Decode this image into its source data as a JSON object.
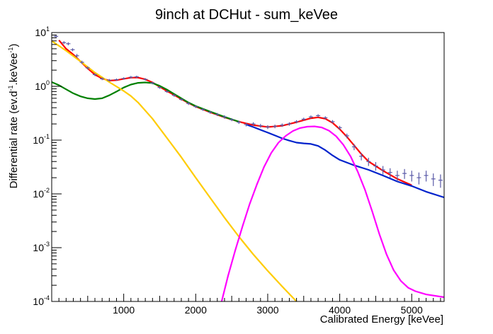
{
  "chart_data": {
    "type": "line",
    "title": "9inch at DCHut - sum_keVee",
    "xlabel": "Calibrated Energy [keVee]",
    "ylabel": "Differential rate (ev.d^-1.keVee^-1)",
    "xlim": [
      0,
      5450
    ],
    "ylim": [
      0.0001,
      10
    ],
    "log_y": true,
    "grid": false,
    "x_ticks": [
      {
        "value": 1000,
        "label": "1000"
      },
      {
        "value": 2000,
        "label": "2000"
      },
      {
        "value": 3000,
        "label": "3000"
      },
      {
        "value": 4000,
        "label": "4000"
      },
      {
        "value": 5000,
        "label": "5000"
      }
    ],
    "y_ticks": [
      {
        "value": 10,
        "base": "10",
        "exp": "1"
      },
      {
        "value": 1,
        "base": "10",
        "exp": "0"
      },
      {
        "value": 0.1,
        "base": "10",
        "exp": "-1"
      },
      {
        "value": 0.01,
        "base": "10",
        "exp": "-2"
      },
      {
        "value": 0.001,
        "base": "10",
        "exp": "-3"
      },
      {
        "value": 0.0001,
        "base": "10",
        "exp": "-4"
      }
    ],
    "series": [
      {
        "kind": "data-points",
        "color": "#5a5aa8",
        "points": [
          {
            "x": 60,
            "y": 8.5,
            "err": 0.5
          },
          {
            "x": 170,
            "y": 6.5,
            "err": 0.4
          },
          {
            "x": 230,
            "y": 6.2,
            "err": 0.4
          },
          {
            "x": 290,
            "y": 4.8,
            "err": 0.3
          },
          {
            "x": 350,
            "y": 3.7,
            "err": 0.3
          },
          {
            "x": 420,
            "y": 2.8,
            "err": 0.2
          },
          {
            "x": 500,
            "y": 2.2,
            "err": 0.15
          },
          {
            "x": 600,
            "y": 1.65,
            "err": 0.1
          },
          {
            "x": 700,
            "y": 1.38,
            "err": 0.08
          },
          {
            "x": 800,
            "y": 1.3,
            "err": 0.07
          },
          {
            "x": 900,
            "y": 1.33,
            "err": 0.07
          },
          {
            "x": 1000,
            "y": 1.4,
            "err": 0.07
          },
          {
            "x": 1100,
            "y": 1.48,
            "err": 0.08
          },
          {
            "x": 1180,
            "y": 1.5,
            "err": 0.08
          },
          {
            "x": 1300,
            "y": 1.35,
            "err": 0.07
          },
          {
            "x": 1400,
            "y": 1.15,
            "err": 0.06
          },
          {
            "x": 1500,
            "y": 0.95,
            "err": 0.05
          },
          {
            "x": 1600,
            "y": 0.8,
            "err": 0.04
          },
          {
            "x": 1700,
            "y": 0.68,
            "err": 0.04
          },
          {
            "x": 1800,
            "y": 0.57,
            "err": 0.03
          },
          {
            "x": 1900,
            "y": 0.48,
            "err": 0.03
          },
          {
            "x": 2000,
            "y": 0.42,
            "err": 0.025
          },
          {
            "x": 2100,
            "y": 0.37,
            "err": 0.02
          },
          {
            "x": 2200,
            "y": 0.33,
            "err": 0.02
          },
          {
            "x": 2300,
            "y": 0.3,
            "err": 0.02
          },
          {
            "x": 2400,
            "y": 0.27,
            "err": 0.02
          },
          {
            "x": 2500,
            "y": 0.24,
            "err": 0.015
          },
          {
            "x": 2600,
            "y": 0.215,
            "err": 0.015
          },
          {
            "x": 2700,
            "y": 0.195,
            "err": 0.015
          },
          {
            "x": 2800,
            "y": 0.2,
            "err": 0.015
          },
          {
            "x": 2900,
            "y": 0.185,
            "err": 0.015
          },
          {
            "x": 3000,
            "y": 0.175,
            "err": 0.014
          },
          {
            "x": 3100,
            "y": 0.18,
            "err": 0.014
          },
          {
            "x": 3200,
            "y": 0.19,
            "err": 0.014
          },
          {
            "x": 3300,
            "y": 0.2,
            "err": 0.015
          },
          {
            "x": 3400,
            "y": 0.22,
            "err": 0.015
          },
          {
            "x": 3500,
            "y": 0.245,
            "err": 0.016
          },
          {
            "x": 3600,
            "y": 0.27,
            "err": 0.017
          },
          {
            "x": 3700,
            "y": 0.285,
            "err": 0.018
          },
          {
            "x": 3800,
            "y": 0.26,
            "err": 0.017
          },
          {
            "x": 3900,
            "y": 0.22,
            "err": 0.016
          },
          {
            "x": 4000,
            "y": 0.17,
            "err": 0.014
          },
          {
            "x": 4100,
            "y": 0.12,
            "err": 0.012
          },
          {
            "x": 4200,
            "y": 0.075,
            "err": 0.01
          },
          {
            "x": 4300,
            "y": 0.05,
            "err": 0.008
          },
          {
            "x": 4400,
            "y": 0.04,
            "err": 0.007
          },
          {
            "x": 4500,
            "y": 0.033,
            "err": 0.006
          },
          {
            "x": 4600,
            "y": 0.028,
            "err": 0.005
          },
          {
            "x": 4700,
            "y": 0.025,
            "err": 0.005
          },
          {
            "x": 4800,
            "y": 0.022,
            "err": 0.005
          },
          {
            "x": 4900,
            "y": 0.024,
            "err": 0.005
          },
          {
            "x": 5000,
            "y": 0.022,
            "err": 0.005
          },
          {
            "x": 5100,
            "y": 0.02,
            "err": 0.005
          },
          {
            "x": 5200,
            "y": 0.022,
            "err": 0.005
          },
          {
            "x": 5300,
            "y": 0.019,
            "err": 0.005
          },
          {
            "x": 5400,
            "y": 0.018,
            "err": 0.005
          }
        ]
      },
      {
        "kind": "curve",
        "color": "#ff0000",
        "points": [
          [
            100,
            7.2
          ],
          [
            200,
            5.0
          ],
          [
            300,
            3.9
          ],
          [
            400,
            2.9
          ],
          [
            500,
            2.15
          ],
          [
            600,
            1.65
          ],
          [
            700,
            1.4
          ],
          [
            800,
            1.28
          ],
          [
            900,
            1.3
          ],
          [
            1000,
            1.38
          ],
          [
            1100,
            1.45
          ],
          [
            1200,
            1.45
          ],
          [
            1300,
            1.35
          ],
          [
            1400,
            1.18
          ],
          [
            1500,
            0.98
          ],
          [
            1600,
            0.82
          ],
          [
            1700,
            0.69
          ],
          [
            1800,
            0.58
          ],
          [
            1900,
            0.49
          ],
          [
            2000,
            0.42
          ],
          [
            2200,
            0.33
          ],
          [
            2400,
            0.265
          ],
          [
            2600,
            0.22
          ],
          [
            2800,
            0.19
          ],
          [
            3000,
            0.175
          ],
          [
            3200,
            0.185
          ],
          [
            3400,
            0.215
          ],
          [
            3600,
            0.255
          ],
          [
            3700,
            0.265
          ],
          [
            3800,
            0.25
          ],
          [
            3900,
            0.21
          ],
          [
            4000,
            0.16
          ],
          [
            4100,
            0.115
          ],
          [
            4200,
            0.08
          ],
          [
            4300,
            0.055
          ],
          [
            4400,
            0.04
          ],
          [
            4600,
            0.027
          ],
          [
            4800,
            0.019
          ],
          [
            5000,
            0.0145
          ]
        ]
      },
      {
        "kind": "curve",
        "color": "#0022cc",
        "points": [
          [
            2700,
            0.195
          ],
          [
            2800,
            0.175
          ],
          [
            2900,
            0.155
          ],
          [
            3000,
            0.138
          ],
          [
            3100,
            0.122
          ],
          [
            3200,
            0.108
          ],
          [
            3300,
            0.098
          ],
          [
            3400,
            0.09
          ],
          [
            3500,
            0.087
          ],
          [
            3600,
            0.085
          ],
          [
            3700,
            0.078
          ],
          [
            3800,
            0.065
          ],
          [
            3900,
            0.052
          ],
          [
            4000,
            0.043
          ],
          [
            4200,
            0.034
          ],
          [
            4400,
            0.028
          ],
          [
            4600,
            0.022
          ],
          [
            4800,
            0.017
          ],
          [
            5000,
            0.014
          ],
          [
            5200,
            0.011
          ],
          [
            5450,
            0.0086
          ]
        ]
      },
      {
        "kind": "curve",
        "color": "#008000",
        "points": [
          [
            0,
            1.2
          ],
          [
            100,
            1.05
          ],
          [
            200,
            0.88
          ],
          [
            300,
            0.74
          ],
          [
            400,
            0.65
          ],
          [
            500,
            0.6
          ],
          [
            600,
            0.58
          ],
          [
            700,
            0.6
          ],
          [
            800,
            0.68
          ],
          [
            900,
            0.8
          ],
          [
            1000,
            0.95
          ],
          [
            1100,
            1.08
          ],
          [
            1200,
            1.16
          ],
          [
            1300,
            1.18
          ],
          [
            1400,
            1.15
          ],
          [
            1500,
            1.02
          ],
          [
            1600,
            0.87
          ],
          [
            1700,
            0.72
          ],
          [
            1800,
            0.6
          ],
          [
            1900,
            0.5
          ],
          [
            2000,
            0.43
          ],
          [
            2200,
            0.34
          ],
          [
            2400,
            0.27
          ],
          [
            2600,
            0.22
          ]
        ]
      },
      {
        "kind": "curve",
        "color": "#ffcc00",
        "points": [
          [
            0,
            7.0
          ],
          [
            200,
            4.6
          ],
          [
            400,
            2.9
          ],
          [
            600,
            1.8
          ],
          [
            800,
            1.2
          ],
          [
            1000,
            0.82
          ],
          [
            1100,
            0.66
          ],
          [
            1200,
            0.5
          ],
          [
            1400,
            0.25
          ],
          [
            1600,
            0.11
          ],
          [
            1800,
            0.048
          ],
          [
            2000,
            0.02
          ],
          [
            2200,
            0.0085
          ],
          [
            2400,
            0.0036
          ],
          [
            2600,
            0.0016
          ],
          [
            2800,
            0.00075
          ],
          [
            3000,
            0.00037
          ],
          [
            3200,
            0.00019
          ],
          [
            3400,
            0.0001
          ]
        ]
      },
      {
        "kind": "curve",
        "color": "#ff00ff",
        "points": [
          [
            2360,
            0.0001
          ],
          [
            2450,
            0.0003
          ],
          [
            2550,
            0.0009
          ],
          [
            2650,
            0.0025
          ],
          [
            2750,
            0.0065
          ],
          [
            2850,
            0.015
          ],
          [
            2950,
            0.032
          ],
          [
            3050,
            0.058
          ],
          [
            3150,
            0.09
          ],
          [
            3250,
            0.12
          ],
          [
            3350,
            0.148
          ],
          [
            3450,
            0.168
          ],
          [
            3550,
            0.178
          ],
          [
            3650,
            0.18
          ],
          [
            3750,
            0.172
          ],
          [
            3850,
            0.15
          ],
          [
            3950,
            0.118
          ],
          [
            4050,
            0.082
          ],
          [
            4150,
            0.05
          ],
          [
            4250,
            0.026
          ],
          [
            4350,
            0.012
          ],
          [
            4450,
            0.0048
          ],
          [
            4550,
            0.0018
          ],
          [
            4650,
            0.00075
          ],
          [
            4750,
            0.00038
          ],
          [
            4850,
            0.00024
          ],
          [
            4950,
            0.00018
          ],
          [
            5050,
            0.000155
          ],
          [
            5200,
            0.000135
          ],
          [
            5450,
            0.00012
          ]
        ]
      }
    ]
  }
}
